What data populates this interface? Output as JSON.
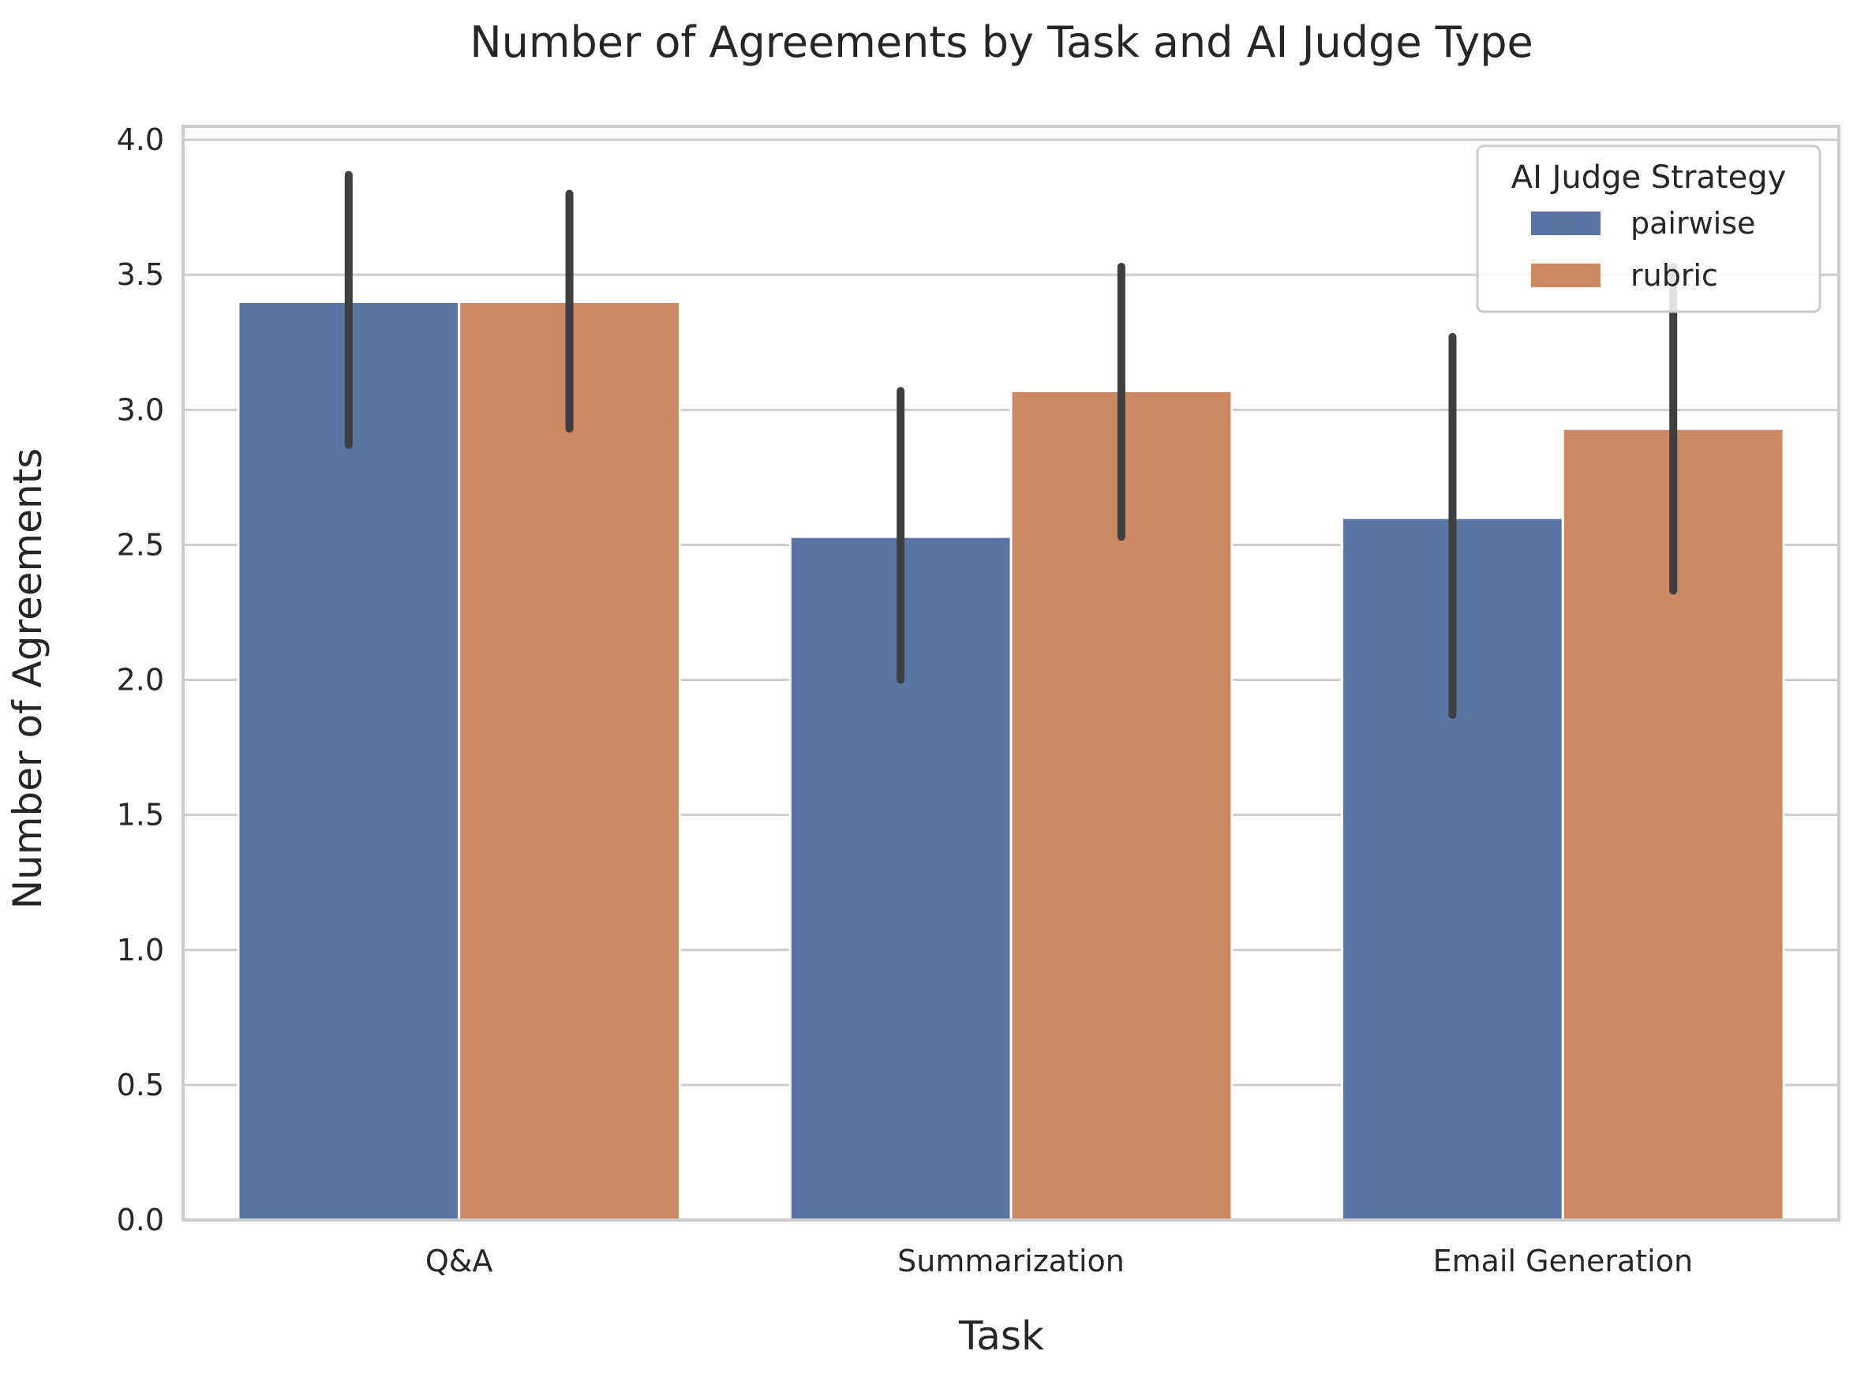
{
  "chart_data": {
    "type": "bar",
    "title": "Number of Agreements by Task and AI Judge Type",
    "xlabel": "Task",
    "ylabel": "Number of Agreements",
    "categories": [
      "Q&A",
      "Summarization",
      "Email Generation"
    ],
    "ylim": [
      0,
      4.05
    ],
    "yticks": [
      "0.0",
      "0.5",
      "1.0",
      "1.5",
      "2.0",
      "2.5",
      "3.0",
      "3.5",
      "4.0"
    ],
    "grid": "horizontal",
    "legend": {
      "title": "AI Judge Strategy",
      "placement": "top-right"
    },
    "series": [
      {
        "name": "pairwise",
        "color": "#5975a4",
        "values": [
          3.4,
          2.53,
          2.6
        ],
        "error_low": [
          2.87,
          2.0,
          1.87
        ],
        "error_high": [
          3.87,
          3.07,
          3.27
        ]
      },
      {
        "name": "rubric",
        "color": "#cc8963",
        "values": [
          3.4,
          3.07,
          2.93
        ],
        "error_low": [
          2.93,
          2.53,
          2.33
        ],
        "error_high": [
          3.8,
          3.53,
          3.53
        ]
      }
    ],
    "error_color": "#3f3f3f",
    "colors": {
      "grid": "#cccccc",
      "frame": "#cccccc",
      "text": "#262626"
    }
  }
}
